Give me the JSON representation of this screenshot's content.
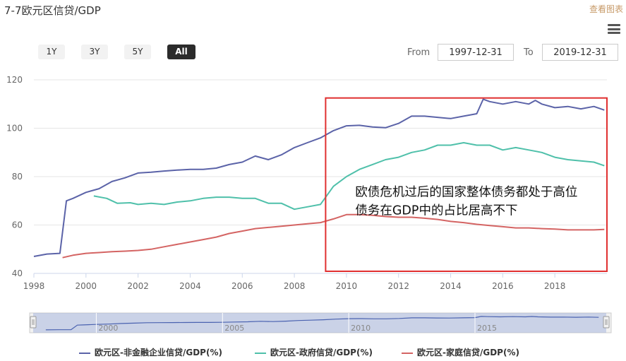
{
  "header": {
    "title": "7-7欧元区信贷/GDP",
    "view_chart_label": "查看图表",
    "menu_icon": "hamburger-menu-icon"
  },
  "range_selector": {
    "buttons": [
      "1Y",
      "3Y",
      "5Y",
      "All"
    ],
    "active": "All"
  },
  "date_range": {
    "from_label": "From",
    "from_value": "1997-12-31",
    "to_label": "To",
    "to_value": "2019-12-31"
  },
  "chart_data": {
    "type": "line",
    "title": "",
    "xlabel": "",
    "ylabel": "",
    "xlim": [
      1998,
      2020
    ],
    "ylim": [
      40,
      120
    ],
    "x_ticks": [
      "1998",
      "2000",
      "2002",
      "2004",
      "2006",
      "2008",
      "2010",
      "2012",
      "2014",
      "2016",
      "2018"
    ],
    "y_ticks": [
      "40",
      "60",
      "80",
      "100",
      "120"
    ],
    "grid": true,
    "legend_position": "bottom",
    "series": [
      {
        "name": "欧元区-非金融企业信贷/GDP(%)",
        "color": "#5b63a8",
        "points": [
          [
            1998.0,
            47
          ],
          [
            1998.5,
            48
          ],
          [
            1999.0,
            48.3
          ],
          [
            1999.25,
            70
          ],
          [
            1999.5,
            71
          ],
          [
            2000.0,
            73.5
          ],
          [
            2000.5,
            75
          ],
          [
            2001.0,
            78
          ],
          [
            2001.5,
            79.5
          ],
          [
            2002.0,
            81.5
          ],
          [
            2002.5,
            81.8
          ],
          [
            2003.0,
            82.3
          ],
          [
            2003.5,
            82.7
          ],
          [
            2004.0,
            83
          ],
          [
            2004.5,
            83
          ],
          [
            2005.0,
            83.5
          ],
          [
            2005.5,
            85
          ],
          [
            2006.0,
            86
          ],
          [
            2006.5,
            88.5
          ],
          [
            2007.0,
            87
          ],
          [
            2007.5,
            89
          ],
          [
            2008.0,
            92
          ],
          [
            2008.5,
            94
          ],
          [
            2009.0,
            96
          ],
          [
            2009.5,
            99
          ],
          [
            2010.0,
            101
          ],
          [
            2010.5,
            101.2
          ],
          [
            2011.0,
            100.5
          ],
          [
            2011.5,
            100.2
          ],
          [
            2012.0,
            102
          ],
          [
            2012.5,
            105
          ],
          [
            2013.0,
            105
          ],
          [
            2013.5,
            104.5
          ],
          [
            2014.0,
            104
          ],
          [
            2014.5,
            105
          ],
          [
            2015.0,
            106
          ],
          [
            2015.25,
            112
          ],
          [
            2015.5,
            111
          ],
          [
            2016.0,
            110
          ],
          [
            2016.5,
            111
          ],
          [
            2017.0,
            110
          ],
          [
            2017.25,
            111.5
          ],
          [
            2017.5,
            110
          ],
          [
            2018.0,
            108.5
          ],
          [
            2018.5,
            109
          ],
          [
            2019.0,
            108
          ],
          [
            2019.5,
            109
          ],
          [
            2019.9,
            107.5
          ]
        ]
      },
      {
        "name": "欧元区-政府信贷/GDP(%)",
        "color": "#4fc0aa",
        "points": [
          [
            2000.3,
            72
          ],
          [
            2000.8,
            71
          ],
          [
            2001.2,
            69
          ],
          [
            2001.7,
            69.2
          ],
          [
            2002.0,
            68.5
          ],
          [
            2002.5,
            69
          ],
          [
            2003.0,
            68.5
          ],
          [
            2003.5,
            69.5
          ],
          [
            2004.0,
            70
          ],
          [
            2004.5,
            71
          ],
          [
            2005.0,
            71.5
          ],
          [
            2005.5,
            71.5
          ],
          [
            2006.0,
            71
          ],
          [
            2006.5,
            71
          ],
          [
            2007.0,
            69
          ],
          [
            2007.5,
            69
          ],
          [
            2008.0,
            66.5
          ],
          [
            2008.5,
            67.5
          ],
          [
            2009.0,
            68.5
          ],
          [
            2009.5,
            76
          ],
          [
            2010.0,
            80
          ],
          [
            2010.5,
            83
          ],
          [
            2011.0,
            85
          ],
          [
            2011.5,
            87
          ],
          [
            2012.0,
            88
          ],
          [
            2012.5,
            90
          ],
          [
            2013.0,
            91
          ],
          [
            2013.5,
            93
          ],
          [
            2014.0,
            93
          ],
          [
            2014.5,
            94
          ],
          [
            2015.0,
            93
          ],
          [
            2015.5,
            93
          ],
          [
            2016.0,
            91
          ],
          [
            2016.5,
            92
          ],
          [
            2017.0,
            91
          ],
          [
            2017.5,
            90
          ],
          [
            2018.0,
            88
          ],
          [
            2018.5,
            87
          ],
          [
            2019.0,
            86.5
          ],
          [
            2019.5,
            86
          ],
          [
            2019.9,
            84.5
          ]
        ]
      },
      {
        "name": "欧元区-家庭信贷/GDP(%)",
        "color": "#d46463",
        "points": [
          [
            1999.1,
            46.5
          ],
          [
            1999.5,
            47.5
          ],
          [
            2000.0,
            48.3
          ],
          [
            2000.5,
            48.6
          ],
          [
            2001.0,
            49
          ],
          [
            2001.5,
            49.2
          ],
          [
            2002.0,
            49.5
          ],
          [
            2002.5,
            50
          ],
          [
            2003.0,
            51
          ],
          [
            2003.5,
            52
          ],
          [
            2004.0,
            53
          ],
          [
            2004.5,
            54
          ],
          [
            2005.0,
            55
          ],
          [
            2005.5,
            56.5
          ],
          [
            2006.0,
            57.5
          ],
          [
            2006.5,
            58.5
          ],
          [
            2007.0,
            59
          ],
          [
            2007.5,
            59.5
          ],
          [
            2008.0,
            60
          ],
          [
            2008.5,
            60.5
          ],
          [
            2009.0,
            61
          ],
          [
            2009.5,
            62.5
          ],
          [
            2010.0,
            64.3
          ],
          [
            2010.5,
            64.3
          ],
          [
            2011.0,
            64
          ],
          [
            2011.5,
            63.5
          ],
          [
            2012.0,
            63.2
          ],
          [
            2012.5,
            63.2
          ],
          [
            2013.0,
            62.8
          ],
          [
            2013.5,
            62.3
          ],
          [
            2014.0,
            61.5
          ],
          [
            2014.5,
            61
          ],
          [
            2015.0,
            60.3
          ],
          [
            2015.5,
            59.8
          ],
          [
            2016.0,
            59.3
          ],
          [
            2016.5,
            58.8
          ],
          [
            2017.0,
            58.8
          ],
          [
            2017.5,
            58.5
          ],
          [
            2018.0,
            58.3
          ],
          [
            2018.5,
            58
          ],
          [
            2019.0,
            58
          ],
          [
            2019.5,
            58
          ],
          [
            2019.9,
            58.2
          ]
        ]
      }
    ],
    "annotation": {
      "lines": [
        "欧债危机过后的国家整体债务都处于高位",
        "债务在GDP中的占比居高不下"
      ],
      "box_color": "#e03030",
      "box_x": [
        2009.2,
        2020.0
      ],
      "box_y": [
        40,
        112.5
      ]
    },
    "navigator": {
      "ticks": [
        "2000",
        "2005",
        "2010",
        "2015"
      ],
      "handle_color": "#a9b8de"
    }
  }
}
